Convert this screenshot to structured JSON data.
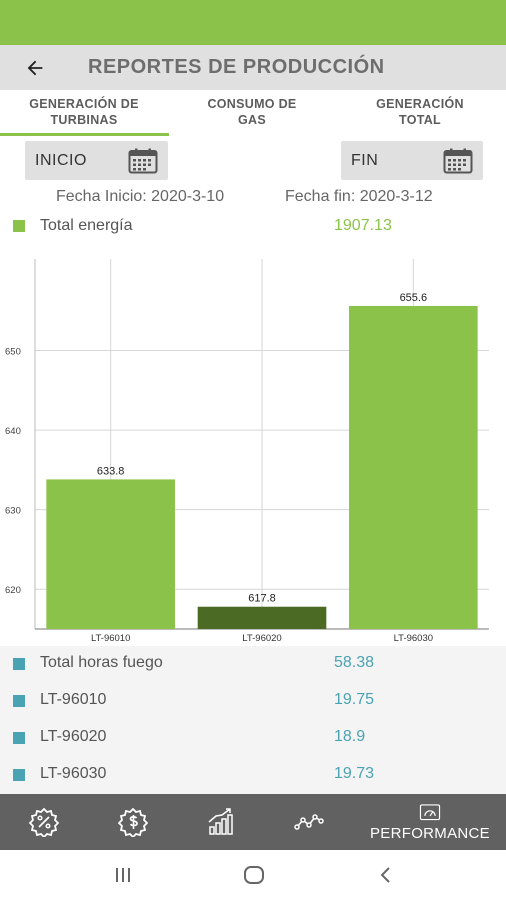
{
  "header": {
    "title": "REPORTES DE PRODUCCIÓN"
  },
  "tabs": [
    {
      "line1": "GENERACIÓN DE",
      "line2": "TURBINAS"
    },
    {
      "line1": "CONSUMO DE",
      "line2": "GAS"
    },
    {
      "line1": "GENERACIÓN",
      "line2": "TOTAL"
    }
  ],
  "filters": {
    "start_label": "INICIO",
    "end_label": "FIN",
    "start_date": "Fecha Inicio: 2020-3-10",
    "end_date": "Fecha fin: 2020-3-12"
  },
  "energy": {
    "label": "Total energía",
    "value": "1907.13"
  },
  "chart_data": {
    "type": "bar",
    "categories": [
      "LT-96010",
      "LT-96020",
      "LT-96030"
    ],
    "values": [
      633.8,
      617.8,
      655.6
    ],
    "value_labels": [
      "633.8",
      "617.8",
      "655.6"
    ],
    "ylim": [
      615,
      661.5
    ],
    "yticks": [
      620,
      630,
      640,
      650
    ],
    "grid": true,
    "colors": [
      "#8bc34a",
      "#4b6b24",
      "#8bc34a"
    ]
  },
  "hours": {
    "total_label": "Total horas fuego",
    "total_value": "58.38",
    "items": [
      {
        "label": "LT-96010",
        "value": "19.75"
      },
      {
        "label": "LT-96020",
        "value": "18.9"
      },
      {
        "label": "LT-96030",
        "value": "19.73"
      }
    ]
  },
  "nav": {
    "items": [
      "percent-badge-icon",
      "dollar-badge-icon",
      "bar-growth-icon",
      "line-trend-icon",
      "gauge-icon"
    ],
    "performance_label": "PERFORMANCE"
  },
  "colors": {
    "accent": "#8bc34a",
    "teal": "#4aa3b2",
    "nav_bg": "#616161"
  }
}
